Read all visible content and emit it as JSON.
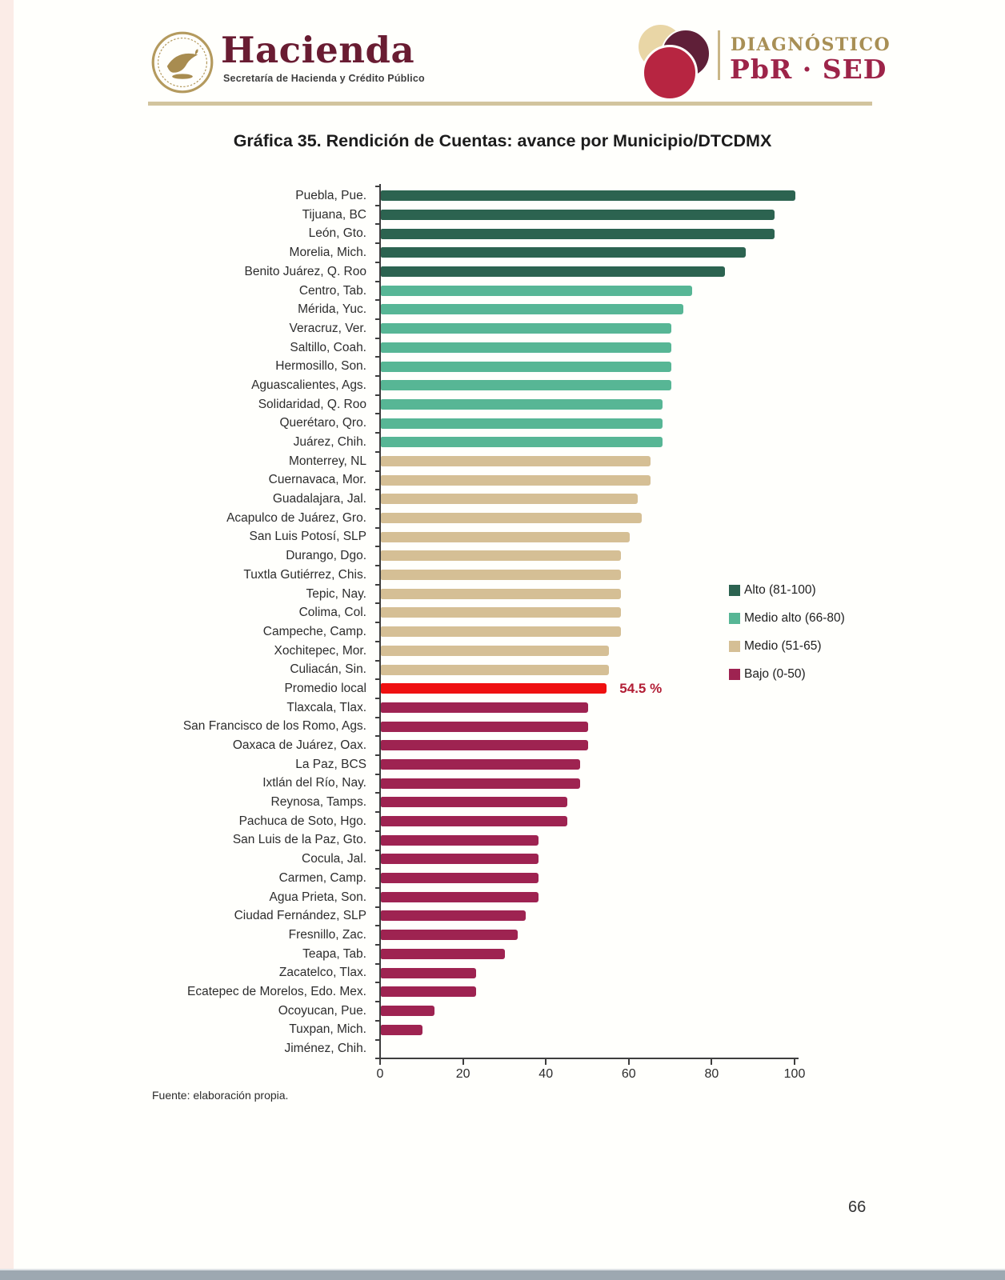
{
  "header": {
    "hacienda": {
      "title": "Hacienda",
      "subtitle": "Secretaría de Hacienda y Crédito Público"
    },
    "pbrsed": {
      "line1": "DIAGNÓSTICO",
      "line2": "PbR · SED"
    }
  },
  "colors": {
    "alto": "#2c6350",
    "medio_alto": "#57b695",
    "medio": "#d5bf95",
    "bajo": "#9e2351",
    "promedio": "#ef1010",
    "annotation": "#b21e35",
    "axis": "#3e3e3e",
    "hacienda_maroon": "#691c32",
    "pbrsed_gold": "#a88f55",
    "pbrsed_maroon": "#9d2449"
  },
  "chart_data": {
    "type": "bar",
    "orientation": "horizontal",
    "title": "Gráfica 35. Rendición de Cuentas: avance por Municipio/DTCDMX",
    "xlabel": "",
    "ylabel": "",
    "xlim": [
      0,
      100
    ],
    "x_ticks": [
      0,
      20,
      40,
      60,
      80,
      100
    ],
    "grid": false,
    "legend_position": "center-right",
    "legend": [
      {
        "label": "Alto (81-100)",
        "category": "alto"
      },
      {
        "label": "Medio alto (66-80)",
        "category": "medio_alto"
      },
      {
        "label": "Medio (51-65)",
        "category": "medio"
      },
      {
        "label": "Bajo (0-50)",
        "category": "bajo"
      }
    ],
    "bars": [
      {
        "label": "Puebla, Pue.",
        "value": 100,
        "category": "alto"
      },
      {
        "label": "Tijuana, BC",
        "value": 95,
        "category": "alto"
      },
      {
        "label": "León, Gto.",
        "value": 95,
        "category": "alto"
      },
      {
        "label": "Morelia, Mich.",
        "value": 88,
        "category": "alto"
      },
      {
        "label": "Benito Juárez, Q. Roo",
        "value": 83,
        "category": "alto"
      },
      {
        "label": "Centro, Tab.",
        "value": 75,
        "category": "medio_alto"
      },
      {
        "label": "Mérida, Yuc.",
        "value": 73,
        "category": "medio_alto"
      },
      {
        "label": "Veracruz, Ver.",
        "value": 70,
        "category": "medio_alto"
      },
      {
        "label": "Saltillo, Coah.",
        "value": 70,
        "category": "medio_alto"
      },
      {
        "label": "Hermosillo, Son.",
        "value": 70,
        "category": "medio_alto"
      },
      {
        "label": "Aguascalientes, Ags.",
        "value": 70,
        "category": "medio_alto"
      },
      {
        "label": "Solidaridad, Q. Roo",
        "value": 68,
        "category": "medio_alto"
      },
      {
        "label": "Querétaro, Qro.",
        "value": 68,
        "category": "medio_alto"
      },
      {
        "label": "Juárez, Chih.",
        "value": 68,
        "category": "medio_alto"
      },
      {
        "label": "Monterrey, NL",
        "value": 65,
        "category": "medio"
      },
      {
        "label": "Cuernavaca, Mor.",
        "value": 65,
        "category": "medio"
      },
      {
        "label": "Guadalajara, Jal.",
        "value": 62,
        "category": "medio"
      },
      {
        "label": "Acapulco de Juárez, Gro.",
        "value": 63,
        "category": "medio"
      },
      {
        "label": "San Luis Potosí, SLP",
        "value": 60,
        "category": "medio"
      },
      {
        "label": "Durango, Dgo.",
        "value": 58,
        "category": "medio"
      },
      {
        "label": "Tuxtla Gutiérrez, Chis.",
        "value": 58,
        "category": "medio"
      },
      {
        "label": "Tepic, Nay.",
        "value": 58,
        "category": "medio"
      },
      {
        "label": "Colima, Col.",
        "value": 58,
        "category": "medio"
      },
      {
        "label": "Campeche, Camp.",
        "value": 58,
        "category": "medio"
      },
      {
        "label": "Xochitepec, Mor.",
        "value": 55,
        "category": "medio"
      },
      {
        "label": "Culiacán, Sin.",
        "value": 55,
        "category": "medio"
      },
      {
        "label": "Promedio local",
        "value": 54.5,
        "category": "promedio",
        "annotation": "54.5 %"
      },
      {
        "label": "Tlaxcala, Tlax.",
        "value": 50,
        "category": "bajo"
      },
      {
        "label": "San Francisco de los Romo, Ags.",
        "value": 50,
        "category": "bajo"
      },
      {
        "label": "Oaxaca de Juárez, Oax.",
        "value": 50,
        "category": "bajo"
      },
      {
        "label": "La Paz, BCS",
        "value": 48,
        "category": "bajo"
      },
      {
        "label": "Ixtlán del Río, Nay.",
        "value": 48,
        "category": "bajo"
      },
      {
        "label": "Reynosa, Tamps.",
        "value": 45,
        "category": "bajo"
      },
      {
        "label": "Pachuca de Soto, Hgo.",
        "value": 45,
        "category": "bajo"
      },
      {
        "label": "San Luis de la Paz, Gto.",
        "value": 38,
        "category": "bajo"
      },
      {
        "label": "Cocula, Jal.",
        "value": 38,
        "category": "bajo"
      },
      {
        "label": "Carmen, Camp.",
        "value": 38,
        "category": "bajo"
      },
      {
        "label": "Agua Prieta, Son.",
        "value": 38,
        "category": "bajo"
      },
      {
        "label": "Ciudad Fernández, SLP",
        "value": 35,
        "category": "bajo"
      },
      {
        "label": "Fresnillo, Zac.",
        "value": 33,
        "category": "bajo"
      },
      {
        "label": "Teapa, Tab.",
        "value": 30,
        "category": "bajo"
      },
      {
        "label": "Zacatelco, Tlax.",
        "value": 23,
        "category": "bajo"
      },
      {
        "label": "Ecatepec de Morelos, Edo. Mex.",
        "value": 23,
        "category": "bajo"
      },
      {
        "label": "Ocoyucan, Pue.",
        "value": 13,
        "category": "bajo"
      },
      {
        "label": "Tuxpan, Mich.",
        "value": 10,
        "category": "bajo"
      },
      {
        "label": "Jiménez, Chih.",
        "value": 0,
        "category": "bajo"
      }
    ]
  },
  "footer": {
    "source": "Fuente: elaboración propia.",
    "page_number": "66"
  }
}
